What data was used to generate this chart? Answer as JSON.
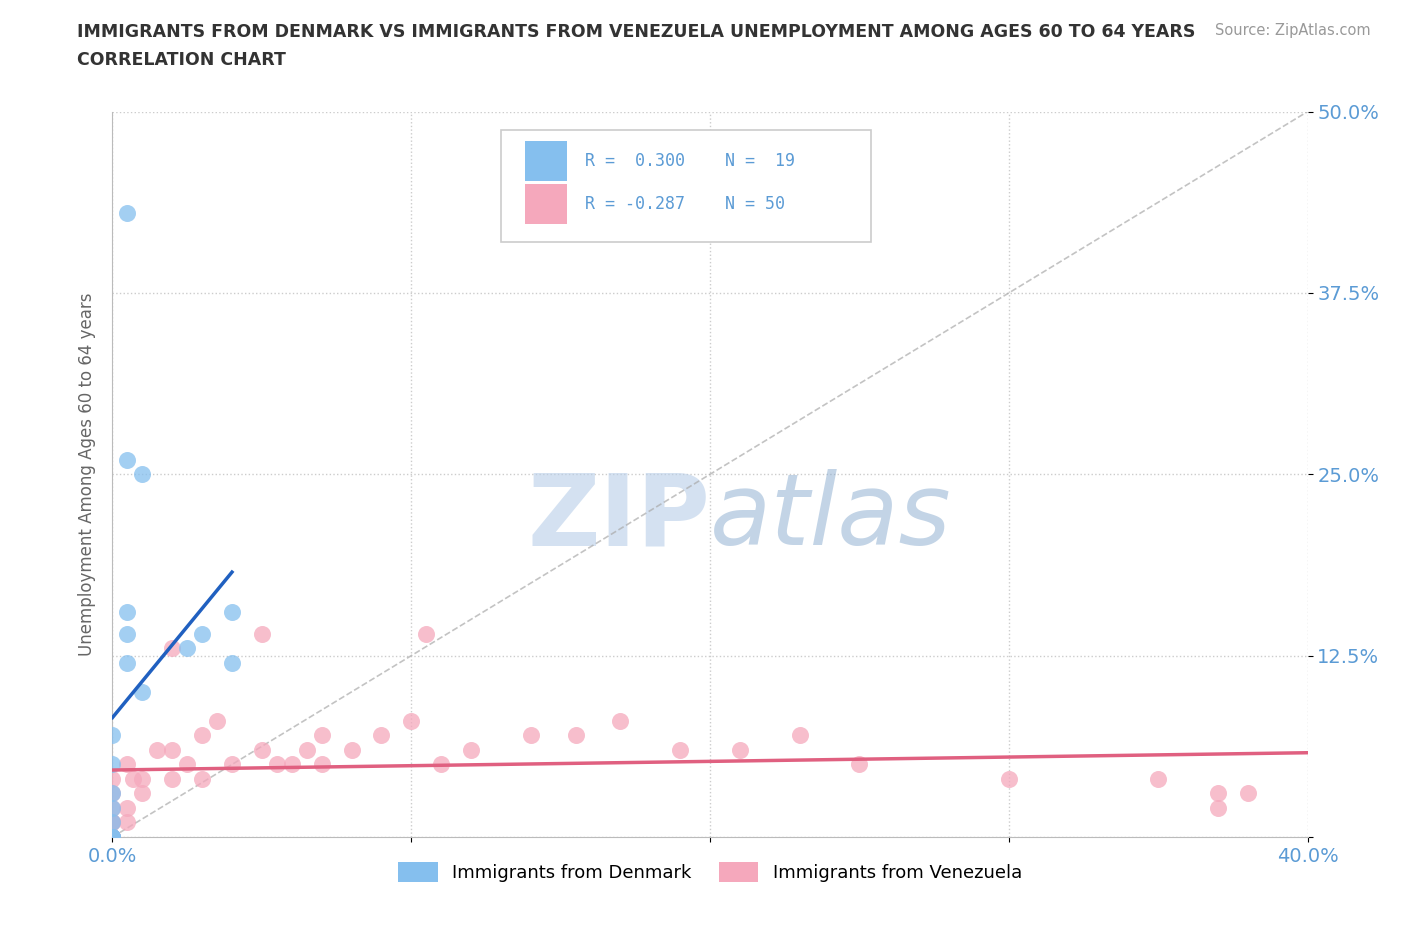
{
  "title_line1": "IMMIGRANTS FROM DENMARK VS IMMIGRANTS FROM VENEZUELA UNEMPLOYMENT AMONG AGES 60 TO 64 YEARS",
  "title_line2": "CORRELATION CHART",
  "source_text": "Source: ZipAtlas.com",
  "ylabel": "Unemployment Among Ages 60 to 64 years",
  "xlim": [
    0.0,
    0.4
  ],
  "ylim": [
    0.0,
    0.5
  ],
  "xticks": [
    0.0,
    0.1,
    0.2,
    0.3,
    0.4
  ],
  "xtick_labels": [
    "0.0%",
    "",
    "",
    "",
    "40.0%"
  ],
  "yticks": [
    0.0,
    0.125,
    0.25,
    0.375,
    0.5
  ],
  "ytick_labels": [
    "",
    "12.5%",
    "25.0%",
    "37.5%",
    "50.0%"
  ],
  "denmark_color": "#85BFEE",
  "venezuela_color": "#F5A8BC",
  "denmark_line_color": "#2060C0",
  "venezuela_line_color": "#E06080",
  "watermark": "ZIPatlas",
  "watermark_color": "#C8DCF0",
  "denmark_x": [
    0.0,
    0.0,
    0.0,
    0.0,
    0.0,
    0.0,
    0.0,
    0.0,
    0.0,
    0.0,
    0.005,
    0.005,
    0.005,
    0.01,
    0.01,
    0.025,
    0.03,
    0.04,
    0.04
  ],
  "denmark_y": [
    0.0,
    0.0,
    0.0,
    0.0,
    0.0,
    0.01,
    0.02,
    0.03,
    0.05,
    0.07,
    0.12,
    0.14,
    0.155,
    0.1,
    0.25,
    0.13,
    0.14,
    0.12,
    0.155
  ],
  "denmark_outlier_x": [
    0.005
  ],
  "denmark_outlier_y": [
    0.43
  ],
  "denmark_outlier2_x": [
    0.005
  ],
  "denmark_outlier2_y": [
    0.26
  ],
  "venezuela_x": [
    0.0,
    0.0,
    0.0,
    0.0,
    0.0,
    0.0,
    0.0,
    0.0,
    0.0,
    0.0,
    0.005,
    0.005,
    0.005,
    0.007,
    0.01,
    0.01,
    0.015,
    0.02,
    0.02,
    0.02,
    0.025,
    0.03,
    0.03,
    0.035,
    0.04,
    0.05,
    0.05,
    0.055,
    0.06,
    0.065,
    0.07,
    0.07,
    0.08,
    0.09,
    0.1,
    0.105,
    0.11,
    0.12,
    0.14,
    0.155,
    0.17,
    0.19,
    0.21,
    0.23,
    0.25,
    0.3,
    0.35,
    0.37,
    0.37,
    0.38
  ],
  "venezuela_y": [
    0.0,
    0.0,
    0.0,
    0.0,
    0.0,
    0.01,
    0.01,
    0.02,
    0.03,
    0.04,
    0.01,
    0.02,
    0.05,
    0.04,
    0.03,
    0.04,
    0.06,
    0.04,
    0.06,
    0.13,
    0.05,
    0.04,
    0.07,
    0.08,
    0.05,
    0.06,
    0.14,
    0.05,
    0.05,
    0.06,
    0.05,
    0.07,
    0.06,
    0.07,
    0.08,
    0.14,
    0.05,
    0.06,
    0.07,
    0.07,
    0.08,
    0.06,
    0.06,
    0.07,
    0.05,
    0.04,
    0.04,
    0.02,
    0.03,
    0.03
  ]
}
